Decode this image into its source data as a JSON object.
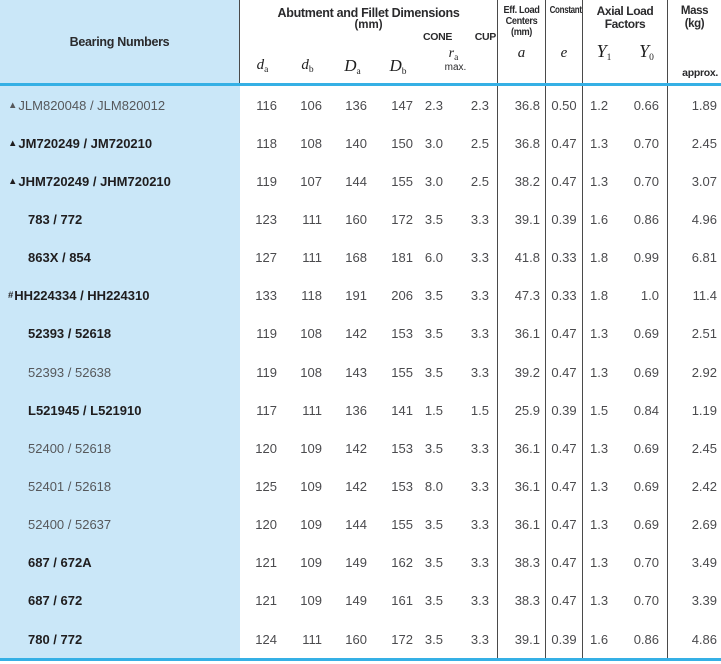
{
  "header": {
    "bearing_numbers": "Bearing Numbers",
    "abutment_title": "Abutment and Fillet Dimensions",
    "abutment_unit": "(mm)",
    "sym_da_base": "d",
    "sym_da_sub": "a",
    "sym_db_base": "d",
    "sym_db_sub": "b",
    "sym_Da_base": "D",
    "sym_Da_sub": "a",
    "sym_Db_base": "D",
    "sym_Db_sub": "b",
    "cone_label": "CONE",
    "cup_label": "CUP",
    "ra_base": "r",
    "ra_sub": "a",
    "ra_max": "max.",
    "eff_load_line1": "Eff. Load",
    "eff_load_line2": "Centers",
    "eff_load_line3": "(mm)",
    "eff_load_sym": "a",
    "constant_label": "Constant",
    "constant_sym": "e",
    "axial_line1": "Axial Load",
    "axial_line2": "Factors",
    "y1_base": "Y",
    "y1_sub": "1",
    "y0_base": "Y",
    "y0_sub": "0",
    "mass_line1": "Mass",
    "mass_line2": "(kg)",
    "mass_approx": "approx."
  },
  "colors": {
    "panel_blue": "#cae7f8",
    "divider_cyan": "#35b0e5",
    "rule_dark": "#4a4a4a"
  },
  "rows": [
    {
      "marker": "▲",
      "name": "JLM820048 / JLM820012",
      "bold": false,
      "values": [
        "116",
        "106",
        "136",
        "147",
        "2.3",
        "2.3",
        "36.8",
        "0.50",
        "1.2",
        "0.66",
        "1.89"
      ]
    },
    {
      "marker": "▲",
      "name": "JM720249 / JM720210",
      "bold": true,
      "values": [
        "118",
        "108",
        "140",
        "150",
        "3.0",
        "2.5",
        "36.8",
        "0.47",
        "1.3",
        "0.70",
        "2.45"
      ]
    },
    {
      "marker": "▲",
      "name": "JHM720249 / JHM720210",
      "bold": true,
      "values": [
        "119",
        "107",
        "144",
        "155",
        "3.0",
        "2.5",
        "38.2",
        "0.47",
        "1.3",
        "0.70",
        "3.07"
      ]
    },
    {
      "marker": "",
      "name": "783 / 772",
      "bold": true,
      "values": [
        "123",
        "111",
        "160",
        "172",
        "3.5",
        "3.3",
        "39.1",
        "0.39",
        "1.6",
        "0.86",
        "4.96"
      ]
    },
    {
      "marker": "",
      "name": "863X / 854",
      "bold": true,
      "values": [
        "127",
        "111",
        "168",
        "181",
        "6.0",
        "3.3",
        "41.8",
        "0.33",
        "1.8",
        "0.99",
        "6.81"
      ]
    },
    {
      "marker": "#",
      "name": "HH224334 / HH224310",
      "bold": true,
      "values": [
        "133",
        "118",
        "191",
        "206",
        "3.5",
        "3.3",
        "47.3",
        "0.33",
        "1.8",
        "1.0",
        "11.4"
      ]
    },
    {
      "marker": "",
      "name": "52393 / 52618",
      "bold": true,
      "values": [
        "119",
        "108",
        "142",
        "153",
        "3.5",
        "3.3",
        "36.1",
        "0.47",
        "1.3",
        "0.69",
        "2.51"
      ]
    },
    {
      "marker": "",
      "name": "52393 / 52638",
      "bold": false,
      "values": [
        "119",
        "108",
        "143",
        "155",
        "3.5",
        "3.3",
        "39.2",
        "0.47",
        "1.3",
        "0.69",
        "2.92"
      ]
    },
    {
      "marker": "",
      "name": "L521945 / L521910",
      "bold": true,
      "values": [
        "117",
        "111",
        "136",
        "141",
        "1.5",
        "1.5",
        "25.9",
        "0.39",
        "1.5",
        "0.84",
        "1.19"
      ]
    },
    {
      "marker": "",
      "name": "52400 / 52618",
      "bold": false,
      "values": [
        "120",
        "109",
        "142",
        "153",
        "3.5",
        "3.3",
        "36.1",
        "0.47",
        "1.3",
        "0.69",
        "2.45"
      ]
    },
    {
      "marker": "",
      "name": "52401 / 52618",
      "bold": false,
      "values": [
        "125",
        "109",
        "142",
        "153",
        "8.0",
        "3.3",
        "36.1",
        "0.47",
        "1.3",
        "0.69",
        "2.42"
      ]
    },
    {
      "marker": "",
      "name": "52400 / 52637",
      "bold": false,
      "values": [
        "120",
        "109",
        "144",
        "155",
        "3.5",
        "3.3",
        "36.1",
        "0.47",
        "1.3",
        "0.69",
        "2.69"
      ]
    },
    {
      "marker": "",
      "name": "687 / 672A",
      "bold": true,
      "values": [
        "121",
        "109",
        "149",
        "162",
        "3.5",
        "3.3",
        "38.3",
        "0.47",
        "1.3",
        "0.70",
        "3.49"
      ]
    },
    {
      "marker": "",
      "name": "687 / 672",
      "bold": true,
      "values": [
        "121",
        "109",
        "149",
        "161",
        "3.5",
        "3.3",
        "38.3",
        "0.47",
        "1.3",
        "0.70",
        "3.39"
      ]
    },
    {
      "marker": "",
      "name": "780 / 772",
      "bold": true,
      "values": [
        "124",
        "111",
        "160",
        "172",
        "3.5",
        "3.3",
        "39.1",
        "0.39",
        "1.6",
        "0.86",
        "4.86"
      ]
    }
  ]
}
